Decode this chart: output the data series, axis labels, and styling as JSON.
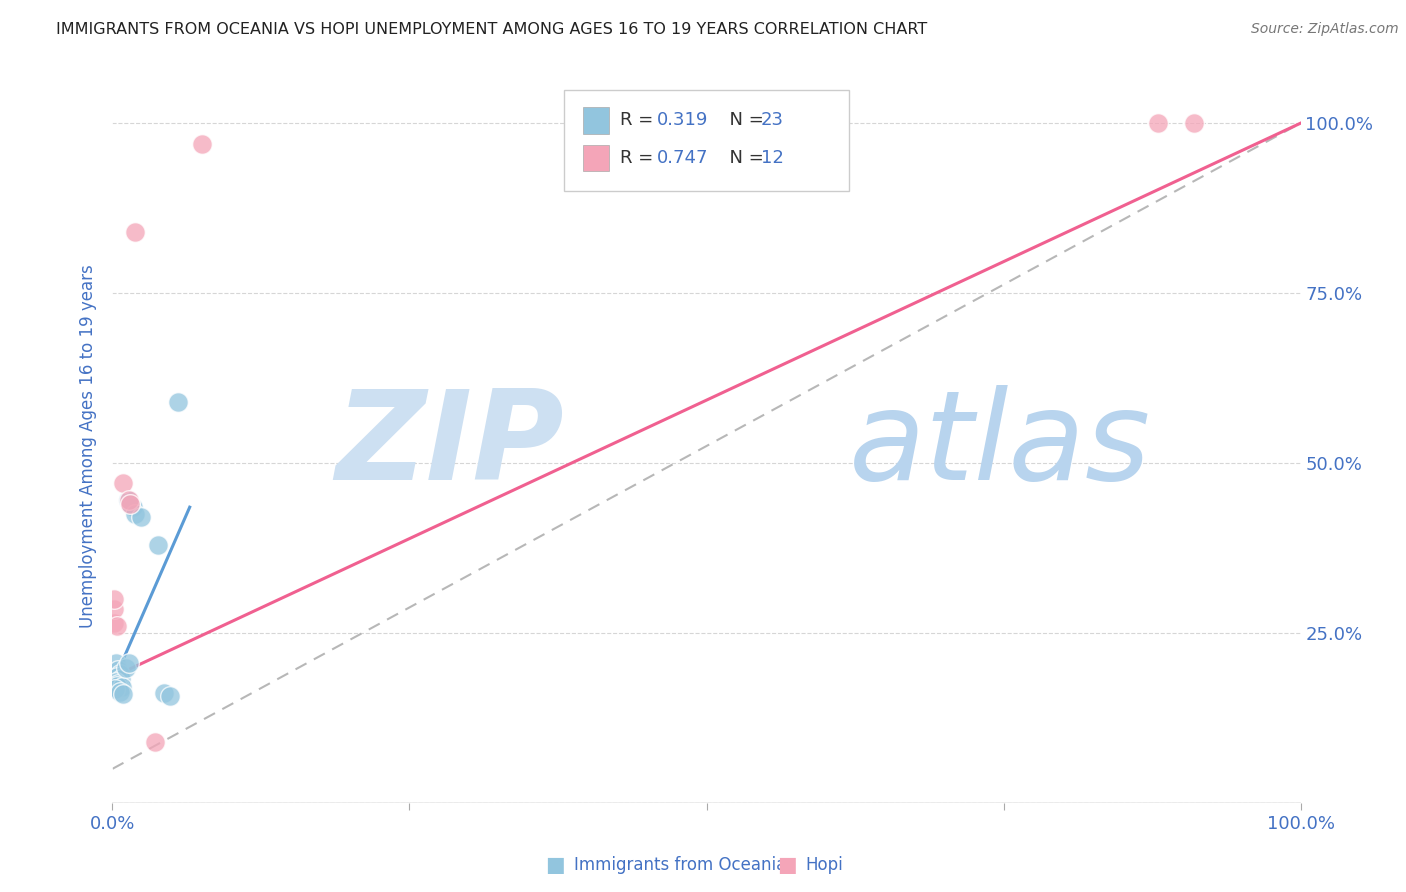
{
  "title": "IMMIGRANTS FROM OCEANIA VS HOPI UNEMPLOYMENT AMONG AGES 16 TO 19 YEARS CORRELATION CHART",
  "source": "Source: ZipAtlas.com",
  "ylabel": "Unemployment Among Ages 16 to 19 years",
  "xlim": [
    0.0,
    1.0
  ],
  "ylim": [
    0.0,
    1.05
  ],
  "xtick_positions": [
    0.0,
    0.25,
    0.5,
    0.75,
    1.0
  ],
  "xtick_labels": [
    "0.0%",
    "",
    "",
    "",
    "100.0%"
  ],
  "ytick_positions": [
    0.0,
    0.25,
    0.5,
    0.75,
    1.0
  ],
  "ytick_labels_right": [
    "",
    "25.0%",
    "50.0%",
    "75.0%",
    "100.0%"
  ],
  "legend_r1": "R = 0.319",
  "legend_n1": "N = 23",
  "legend_r2": "R = 0.747",
  "legend_n2": "N = 12",
  "blue_color": "#92c5de",
  "pink_color": "#f4a5b8",
  "blue_line_color": "#5b9bd5",
  "pink_line_color": "#f06090",
  "dashed_line_color": "#b0b0b0",
  "title_color": "#222222",
  "axis_label_color": "#4472c4",
  "rn_color": "#4472c4",
  "source_color": "#777777",
  "watermark_zip_color": "#dce9f7",
  "watermark_atlas_color": "#c8ddf0",
  "blue_dots": [
    [
      0.003,
      0.205
    ],
    [
      0.005,
      0.195
    ],
    [
      0.006,
      0.19
    ],
    [
      0.004,
      0.185
    ],
    [
      0.007,
      0.182
    ],
    [
      0.003,
      0.178
    ],
    [
      0.005,
      0.175
    ],
    [
      0.004,
      0.172
    ],
    [
      0.008,
      0.17
    ],
    [
      0.002,
      0.167
    ],
    [
      0.006,
      0.163
    ],
    [
      0.009,
      0.16
    ],
    [
      0.011,
      0.198
    ],
    [
      0.014,
      0.205
    ],
    [
      0.013,
      0.445
    ],
    [
      0.017,
      0.435
    ],
    [
      0.015,
      0.44
    ],
    [
      0.019,
      0.425
    ],
    [
      0.024,
      0.42
    ],
    [
      0.038,
      0.38
    ],
    [
      0.043,
      0.162
    ],
    [
      0.048,
      0.157
    ],
    [
      0.055,
      0.59
    ]
  ],
  "pink_dots": [
    [
      0.001,
      0.265
    ],
    [
      0.001,
      0.285
    ],
    [
      0.001,
      0.3
    ],
    [
      0.004,
      0.26
    ],
    [
      0.009,
      0.47
    ],
    [
      0.014,
      0.445
    ],
    [
      0.015,
      0.44
    ],
    [
      0.019,
      0.84
    ],
    [
      0.036,
      0.09
    ],
    [
      0.88,
      1.0
    ],
    [
      0.91,
      1.0
    ],
    [
      0.075,
      0.97
    ]
  ],
  "blue_line_x": [
    0.0,
    0.065
  ],
  "blue_line_y": [
    0.175,
    0.435
  ],
  "pink_line_x": [
    0.0,
    1.0
  ],
  "pink_line_y": [
    0.185,
    1.0
  ],
  "dashed_line_x": [
    0.0,
    1.0
  ],
  "dashed_line_y": [
    0.05,
    1.0
  ]
}
